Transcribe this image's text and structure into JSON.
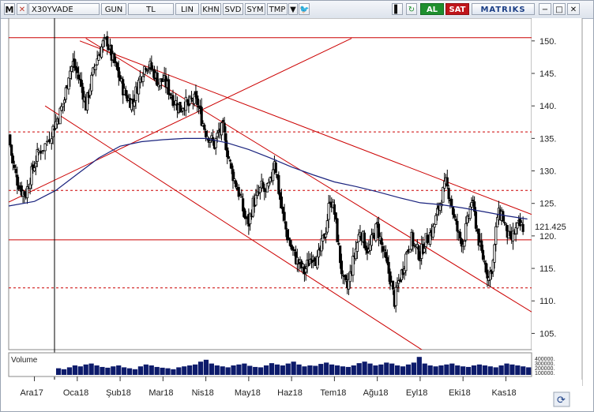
{
  "toolbar": {
    "menu_label": "M",
    "close_label": "✕",
    "symbol": "X30YVADE",
    "period": "GUN",
    "currency": "TL",
    "scale_linear": "LIN",
    "btn_khn": "KHN",
    "btn_svd": "SVD",
    "btn_sym": "SYM",
    "btn_tmp": "TMP",
    "dropdown_icon": "caret-down-icon",
    "twitter_icon": "twitter-icon",
    "refresh_icon": "refresh-icon",
    "pin_icon": "pin-icon",
    "buy_label": "AL",
    "sell_label": "SAT",
    "brand": "MATRIKS",
    "window_controls": [
      "−",
      "□",
      "✕"
    ]
  },
  "panel": {
    "volume_label": "Volume",
    "sync_icon": "sync-icon"
  },
  "colors": {
    "candle": "#000000",
    "trend": "#cc0000",
    "moving_average": "#1a237e",
    "volume": "#0d1b6b",
    "crosshair": "#000000"
  },
  "chart_data": {
    "type": "candlestick",
    "y_axis": {
      "ticks": [
        105,
        110,
        115,
        120,
        125,
        130,
        135,
        140,
        145,
        150
      ],
      "tick_labels": [
        "105.",
        "110.",
        "115.",
        "120.",
        "125.",
        "130.",
        "135.",
        "140.",
        "145.",
        "150."
      ],
      "range": [
        102.5,
        153.5
      ],
      "last_price": 121.425,
      "last_price_label": "121.425"
    },
    "x_axis": {
      "labels": [
        "Ara17",
        "Oca18",
        "Şub18",
        "Mar18",
        "Nis18",
        "May18",
        "Haz18",
        "Tem18",
        "Ağu18",
        "Eyl18",
        "Eki18",
        "Kas18"
      ],
      "month_index": [
        0,
        1,
        2,
        3,
        4,
        5,
        6,
        7,
        8,
        9,
        10,
        11
      ],
      "range": [
        -0.6,
        11.6
      ]
    },
    "horizontal_levels": [
      {
        "price": 150.5,
        "style": "solid"
      },
      {
        "price": 136,
        "style": "dashed"
      },
      {
        "price": 127,
        "style": "dashed"
      },
      {
        "price": 119.4,
        "style": "solid"
      },
      {
        "price": 112,
        "style": "dashed"
      }
    ],
    "trend_lines": [
      {
        "from": [
          1.06,
          150
        ],
        "to": [
          11.6,
          123.3
        ]
      },
      {
        "from": [
          1.2,
          150.4
        ],
        "to": [
          11.6,
          108.3
        ]
      },
      {
        "from": [
          -0.6,
          125.2
        ],
        "to": [
          7.4,
          150.4
        ]
      },
      {
        "from": [
          0.25,
          140
        ],
        "to": [
          9.2,
          101.8
        ]
      }
    ],
    "moving_average": [
      [
        -0.6,
        124.6
      ],
      [
        0,
        125.3
      ],
      [
        0.5,
        127
      ],
      [
        1,
        129.5
      ],
      [
        1.5,
        132
      ],
      [
        2,
        133.8
      ],
      [
        2.5,
        134.5
      ],
      [
        3,
        134.8
      ],
      [
        3.5,
        135
      ],
      [
        4,
        135
      ],
      [
        4.5,
        134.3
      ],
      [
        5,
        133.3
      ],
      [
        5.5,
        132
      ],
      [
        6,
        130.6
      ],
      [
        6.5,
        129.4
      ],
      [
        7,
        128.3
      ],
      [
        7.5,
        127.6
      ],
      [
        8,
        126.8
      ],
      [
        8.5,
        125.9
      ],
      [
        9,
        125.1
      ],
      [
        9.5,
        124.8
      ],
      [
        10,
        124.3
      ],
      [
        10.5,
        123.7
      ],
      [
        11,
        123.1
      ],
      [
        11.5,
        122.6
      ]
    ],
    "price_path": [
      [
        -0.6,
        135.5
      ],
      [
        -0.5,
        131
      ],
      [
        -0.4,
        128.5
      ],
      [
        -0.3,
        127
      ],
      [
        -0.2,
        126.5
      ],
      [
        -0.1,
        129
      ],
      [
        0,
        131
      ],
      [
        0.1,
        133
      ],
      [
        0.25,
        134
      ],
      [
        0.4,
        136
      ],
      [
        0.5,
        137.5
      ],
      [
        0.6,
        139
      ],
      [
        0.7,
        141
      ],
      [
        0.8,
        145
      ],
      [
        0.9,
        146.5
      ],
      [
        1.0,
        145
      ],
      [
        1.1,
        143
      ],
      [
        1.2,
        140
      ],
      [
        1.3,
        143
      ],
      [
        1.4,
        146
      ],
      [
        1.5,
        148
      ],
      [
        1.6,
        149.5
      ],
      [
        1.7,
        150
      ],
      [
        1.8,
        147.5
      ],
      [
        1.9,
        146
      ],
      [
        2.0,
        144
      ],
      [
        2.1,
        142
      ],
      [
        2.2,
        141
      ],
      [
        2.3,
        140.5
      ],
      [
        2.4,
        143
      ],
      [
        2.5,
        145
      ],
      [
        2.6,
        146.5
      ],
      [
        2.7,
        146
      ],
      [
        2.8,
        145
      ],
      [
        2.9,
        143.5
      ],
      [
        3.0,
        144
      ],
      [
        3.1,
        143
      ],
      [
        3.2,
        141.5
      ],
      [
        3.3,
        140.5
      ],
      [
        3.4,
        139.5
      ],
      [
        3.5,
        140.5
      ],
      [
        3.6,
        140
      ],
      [
        3.7,
        141
      ],
      [
        3.8,
        140.5
      ],
      [
        3.9,
        138
      ],
      [
        4.0,
        136
      ],
      [
        4.1,
        135
      ],
      [
        4.2,
        134
      ],
      [
        4.3,
        136
      ],
      [
        4.4,
        136.5
      ],
      [
        4.5,
        133
      ],
      [
        4.6,
        130
      ],
      [
        4.7,
        128
      ],
      [
        4.8,
        126
      ],
      [
        4.9,
        123
      ],
      [
        5.0,
        122
      ],
      [
        5.1,
        125
      ],
      [
        5.2,
        126
      ],
      [
        5.3,
        127.5
      ],
      [
        5.4,
        126.5
      ],
      [
        5.5,
        128
      ],
      [
        5.6,
        132
      ],
      [
        5.7,
        127
      ],
      [
        5.8,
        123
      ],
      [
        5.9,
        120
      ],
      [
        6.0,
        118
      ],
      [
        6.1,
        116.5
      ],
      [
        6.2,
        115.5
      ],
      [
        6.3,
        114.5
      ],
      [
        6.4,
        116
      ],
      [
        6.5,
        117.5
      ],
      [
        6.6,
        116
      ],
      [
        6.7,
        118.5
      ],
      [
        6.8,
        121
      ],
      [
        6.9,
        126
      ],
      [
        7.0,
        123.5
      ],
      [
        7.1,
        118
      ],
      [
        7.2,
        113
      ],
      [
        7.3,
        112
      ],
      [
        7.4,
        115
      ],
      [
        7.5,
        118
      ],
      [
        7.6,
        121
      ],
      [
        7.7,
        119
      ],
      [
        7.8,
        117.5
      ],
      [
        7.9,
        120
      ],
      [
        8.0,
        121.5
      ],
      [
        8.1,
        118.5
      ],
      [
        8.2,
        116
      ],
      [
        8.3,
        113.5
      ],
      [
        8.4,
        110
      ],
      [
        8.5,
        113
      ],
      [
        8.6,
        115
      ],
      [
        8.7,
        118
      ],
      [
        8.8,
        119.5
      ],
      [
        8.9,
        118
      ],
      [
        9.0,
        117
      ],
      [
        9.1,
        119
      ],
      [
        9.2,
        120
      ],
      [
        9.3,
        121
      ],
      [
        9.4,
        123.5
      ],
      [
        9.5,
        126
      ],
      [
        9.6,
        128
      ],
      [
        9.7,
        126
      ],
      [
        9.8,
        122.5
      ],
      [
        9.9,
        120
      ],
      [
        10.0,
        119
      ],
      [
        10.1,
        122
      ],
      [
        10.2,
        125.5
      ],
      [
        10.3,
        122
      ],
      [
        10.4,
        118
      ],
      [
        10.5,
        116
      ],
      [
        10.6,
        113.5
      ],
      [
        10.7,
        116
      ],
      [
        10.8,
        123
      ],
      [
        10.9,
        123.5
      ],
      [
        11.0,
        121
      ],
      [
        11.1,
        119
      ],
      [
        11.2,
        120.5
      ],
      [
        11.3,
        121.5
      ],
      [
        11.4,
        121.4
      ]
    ],
    "volume_axis_labels": [
      "400000.",
      "300000.",
      "200000.",
      "100000."
    ],
    "volume_relative": [
      0.35,
      0.3,
      0.4,
      0.5,
      0.45,
      0.55,
      0.6,
      0.5,
      0.42,
      0.38,
      0.45,
      0.5,
      0.4,
      0.35,
      0.3,
      0.45,
      0.55,
      0.5,
      0.42,
      0.38,
      0.35,
      0.3,
      0.4,
      0.45,
      0.5,
      0.55,
      0.7,
      0.8,
      0.6,
      0.5,
      0.45,
      0.4,
      0.5,
      0.55,
      0.6,
      0.48,
      0.42,
      0.4,
      0.5,
      0.62,
      0.55,
      0.5,
      0.6,
      0.7,
      0.55,
      0.45,
      0.5,
      0.48,
      0.58,
      0.65,
      0.55,
      0.5,
      0.45,
      0.42,
      0.5,
      0.62,
      0.7,
      0.6,
      0.5,
      0.55,
      0.65,
      0.6,
      0.5,
      0.45,
      0.55,
      0.65,
      0.95,
      0.6,
      0.5,
      0.45,
      0.5,
      0.55,
      0.6,
      0.5,
      0.45,
      0.42,
      0.5,
      0.55,
      0.5,
      0.45,
      0.4,
      0.5,
      0.6,
      0.55,
      0.5,
      0.45,
      0.4
    ]
  }
}
